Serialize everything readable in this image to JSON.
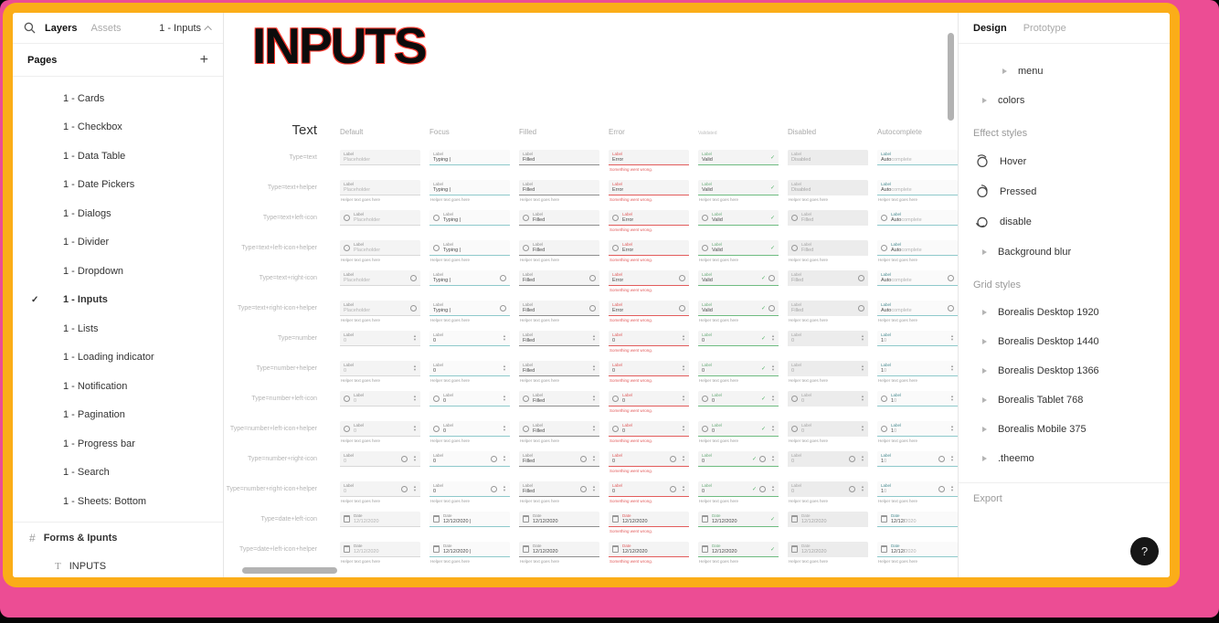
{
  "colors": {
    "frame_orange": "#FBAD18",
    "backdrop_pink": "#EC4D94",
    "focus_teal": "#8EC9CB",
    "error_red": "#E25C5C",
    "valid_green": "#57B36A"
  },
  "icons": {
    "search": "magnifier",
    "page_selector_chevron": "chevron-up",
    "add_page": "plus",
    "selected_page": "check",
    "frame_layer": "hash",
    "text_layer": "T",
    "disclosure": "triangle-right",
    "effect_style": "circle-with-shadow",
    "help": "question-mark",
    "input_left": "circle-outline",
    "input_calendar": "calendar",
    "number_stepper": "up-down-arrows",
    "valid_state": "check"
  },
  "left_sidebar": {
    "tabs": [
      {
        "label": "Layers",
        "active": true
      },
      {
        "label": "Assets",
        "active": false
      }
    ],
    "page_selector": "1 - Inputs",
    "pages_header": "Pages",
    "add_label": "+",
    "check_glyph": "✓",
    "pages": [
      {
        "label": "1 - Cards"
      },
      {
        "label": "1 - Checkbox"
      },
      {
        "label": "1 - Data Table"
      },
      {
        "label": "1 - Date Pickers"
      },
      {
        "label": "1 - Dialogs"
      },
      {
        "label": "1 - Divider"
      },
      {
        "label": "1 - Dropdown"
      },
      {
        "label": "1 - Inputs",
        "selected": true
      },
      {
        "label": "1 - Lists"
      },
      {
        "label": "1 - Loading indicator"
      },
      {
        "label": "1 - Notification"
      },
      {
        "label": "1 - Pagination"
      },
      {
        "label": "1 - Progress bar"
      },
      {
        "label": "1 - Search"
      },
      {
        "label": "1 - Sheets: Bottom"
      }
    ],
    "layers": [
      {
        "icon": "#",
        "label": "Forms & Ipunts",
        "kind": "frame"
      },
      {
        "icon": "T",
        "label": "INPUTS",
        "kind": "text"
      }
    ]
  },
  "canvas": {
    "title": "INPUTS",
    "section_label": "Text",
    "columns": [
      "Default",
      "Focus",
      "Filled",
      "Error",
      "Validated",
      "Disabled",
      "Autocomplete"
    ],
    "rows": [
      {
        "label": "Type=text",
        "type": "text"
      },
      {
        "label": "Type=text+helper",
        "type": "text",
        "helper": true
      },
      {
        "label": "Type=text+left-icon",
        "type": "text",
        "left_icon": true
      },
      {
        "label": "Type=text+left-icon+helper",
        "type": "text",
        "left_icon": true,
        "helper": true
      },
      {
        "label": "Type=text+right-icon",
        "type": "text",
        "right_icon": true
      },
      {
        "label": "Type=text+right-icon+helper",
        "type": "text",
        "right_icon": true,
        "helper": true
      },
      {
        "label": "Type=number",
        "type": "number"
      },
      {
        "label": "Type=number+helper",
        "type": "number",
        "helper": true
      },
      {
        "label": "Type=number+left-icon",
        "type": "number",
        "left_icon": true
      },
      {
        "label": "Type=number+left-icon+helper",
        "type": "number",
        "left_icon": true,
        "helper": true
      },
      {
        "label": "Type=number+right-icon",
        "type": "number",
        "right_icon": true
      },
      {
        "label": "Type=number+right-icon+helper",
        "type": "number",
        "right_icon": true,
        "helper": true
      },
      {
        "label": "Type=date+left-icon",
        "type": "date",
        "left_icon": true
      },
      {
        "label": "Type=date+left-icon+helper",
        "type": "date",
        "left_icon": true,
        "helper": true
      }
    ],
    "field_labels": {
      "generic": "Label",
      "date": "Date"
    },
    "values": {
      "text": {
        "default": "Placeholder",
        "focus": "Typing |",
        "filled": "Filled",
        "error": "Error",
        "validated": "Valid",
        "disabled": "Disabled",
        "disabled_alt": "Filled",
        "autocomplete_typed": "Auto",
        "autocomplete_suggestion": "complete"
      },
      "number": {
        "default": "0",
        "focus": "0",
        "filled": "Filled",
        "error": "0",
        "validated": "0",
        "disabled": "0",
        "disabled_alt": "0",
        "autocomplete_typed": "1",
        "autocomplete_suggestion": "0"
      },
      "date": {
        "default": "12/12/2020",
        "focus": "12/12/2020 |",
        "filled": "12/12/2020",
        "error": "12/12/2020",
        "validated": "12/12/2020",
        "disabled": "12/12/2020",
        "disabled_alt": "12/12/2020",
        "autocomplete_typed": "12/12/",
        "autocomplete_suggestion": "2020"
      }
    },
    "helper_text": "Helper text goes here",
    "error_helper_text": "Something went wrong.",
    "stepper_up": "▲",
    "stepper_down": "▼",
    "valid_glyph": "✓"
  },
  "right_panel": {
    "tabs": [
      {
        "label": "Design",
        "active": true
      },
      {
        "label": "Prototype",
        "active": false
      }
    ],
    "tree": [
      {
        "label": "menu",
        "indent": 2
      },
      {
        "label": "colors",
        "indent": 1
      }
    ],
    "effect_styles": {
      "header": "Effect styles",
      "items": [
        {
          "label": "Hover",
          "icon": "effect"
        },
        {
          "label": "Pressed",
          "icon": "effect"
        },
        {
          "label": "disable",
          "icon": "effect"
        },
        {
          "label": "Background blur",
          "icon": "triangle"
        }
      ]
    },
    "grid_styles": {
      "header": "Grid styles",
      "items": [
        "Borealis Desktop 1920",
        "Borealis Desktop 1440",
        "Borealis Desktop 1366",
        "Borealis Tablet 768",
        "Borealis Mobile 375",
        ".theemo"
      ]
    },
    "export_header": "Export",
    "help_label": "?"
  }
}
